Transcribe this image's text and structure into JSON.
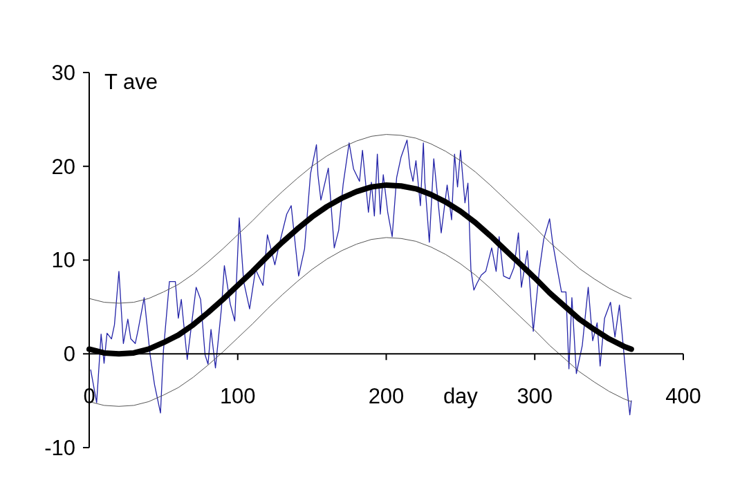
{
  "chart_data": {
    "type": "line",
    "xlabel": "day",
    "ylabel": "T ave",
    "xlim": [
      0,
      400
    ],
    "ylim": [
      -10,
      30
    ],
    "xticks": [
      0,
      100,
      200,
      300,
      400
    ],
    "yticks": [
      -10,
      0,
      10,
      20,
      30
    ],
    "series": [
      {
        "color": "#2323a8",
        "x": [
          1,
          5,
          8,
          10,
          12,
          15,
          17,
          20,
          23,
          26,
          28,
          31,
          33,
          37,
          41,
          44,
          48,
          50,
          54,
          58,
          60,
          62,
          66,
          72,
          75,
          78,
          80,
          82,
          85,
          89,
          91,
          95,
          98,
          101,
          104,
          108,
          112,
          117,
          120,
          125,
          128,
          133,
          136,
          141,
          145,
          149,
          153,
          154,
          156,
          161,
          165,
          168,
          171,
          175,
          178,
          182,
          184,
          188,
          190,
          192,
          194,
          196,
          198,
          201,
          204,
          207,
          210,
          214,
          216,
          218,
          220,
          223,
          225,
          226,
          229,
          232,
          237,
          241,
          244,
          246,
          248,
          250,
          253,
          255,
          257,
          259,
          261,
          264,
          267,
          271,
          274,
          276,
          279,
          283,
          286,
          289,
          291,
          295,
          299,
          303,
          306,
          310,
          312,
          315,
          318,
          321,
          323,
          325,
          328,
          332,
          336,
          339,
          342,
          344,
          347,
          351,
          354,
          357,
          360,
          362,
          364,
          365
        ],
        "values": [
          -1.7,
          -5.2,
          2.1,
          -1,
          2.2,
          1.6,
          3.1,
          8.8,
          1.1,
          3.7,
          1.6,
          1.1,
          2.6,
          6,
          -0.1,
          -3.3,
          -6.3,
          0.4,
          7.7,
          7.7,
          3.8,
          5.8,
          -0.6,
          7.1,
          5.8,
          -0.1,
          -1.1,
          2.6,
          -1.5,
          4.8,
          9.4,
          5.3,
          3.5,
          14.5,
          7.7,
          4.8,
          9,
          7.3,
          12.7,
          9.5,
          11.7,
          14.9,
          15.8,
          8.3,
          11.2,
          19.2,
          22.3,
          19.1,
          16.4,
          19.8,
          11.3,
          13.2,
          18.1,
          22.5,
          19.7,
          18.4,
          21.7,
          15.1,
          18.3,
          14.7,
          21.3,
          14.9,
          19.1,
          15.1,
          12.5,
          18.8,
          21,
          22.8,
          19.8,
          18.4,
          20.6,
          15.8,
          22.5,
          18.3,
          11.9,
          20.8,
          12.9,
          18,
          14.3,
          21.3,
          17.8,
          21.7,
          16.1,
          18.2,
          9,
          6.8,
          7.5,
          8.4,
          8.8,
          11.3,
          8.8,
          12.5,
          8.3,
          8,
          9.2,
          12.9,
          7.1,
          11,
          2.4,
          8.8,
          12.2,
          14.4,
          11.9,
          9.2,
          6.6,
          6.6,
          -1.6,
          6,
          -2.1,
          0.9,
          7.1,
          1.4,
          3.3,
          -1.3,
          3.8,
          5.5,
          1.8,
          5.2,
          0.1,
          -3.5,
          -6.5,
          -5
        ]
      },
      {
        "color": "#000000",
        "x": [
          0,
          10,
          20,
          30,
          40,
          50,
          60,
          70,
          80,
          90,
          100,
          110,
          120,
          130,
          140,
          150,
          160,
          170,
          180,
          190,
          200,
          210,
          220,
          230,
          240,
          250,
          260,
          270,
          280,
          290,
          300,
          310,
          320,
          330,
          340,
          350,
          360,
          365
        ],
        "values": [
          0.5,
          0.1,
          0,
          0.1,
          0.5,
          1.2,
          2,
          3.1,
          4.4,
          5.8,
          7.3,
          8.8,
          10.4,
          11.9,
          13.3,
          14.6,
          15.7,
          16.6,
          17.3,
          17.8,
          18,
          17.9,
          17.6,
          17,
          16.2,
          15.2,
          14,
          12.6,
          11.1,
          9.6,
          8.1,
          6.5,
          5.1,
          3.7,
          2.6,
          1.6,
          0.8,
          0.5
        ]
      },
      {
        "color": "#555555",
        "x": [
          0,
          10,
          20,
          30,
          40,
          50,
          60,
          70,
          80,
          90,
          100,
          110,
          120,
          130,
          140,
          150,
          160,
          170,
          180,
          190,
          200,
          210,
          220,
          230,
          240,
          250,
          260,
          270,
          280,
          290,
          300,
          310,
          320,
          330,
          340,
          350,
          360,
          365
        ],
        "values": [
          5.9,
          5.5,
          5.4,
          5.5,
          5.9,
          6.6,
          7.4,
          8.5,
          9.8,
          11.2,
          12.7,
          14.2,
          15.8,
          17.3,
          18.7,
          20,
          21.1,
          22,
          22.7,
          23.2,
          23.4,
          23.3,
          23,
          22.4,
          21.6,
          20.6,
          19.4,
          18,
          16.5,
          15,
          13.5,
          11.9,
          10.5,
          9.1,
          8,
          7,
          6.2,
          5.9
        ]
      },
      {
        "color": "#555555",
        "x": [
          0,
          10,
          20,
          30,
          40,
          50,
          60,
          70,
          80,
          90,
          100,
          110,
          120,
          130,
          140,
          150,
          160,
          170,
          180,
          190,
          200,
          210,
          220,
          230,
          240,
          250,
          260,
          270,
          280,
          290,
          300,
          310,
          320,
          330,
          340,
          350,
          360,
          365
        ],
        "values": [
          -5.1,
          -5.5,
          -5.6,
          -5.5,
          -5.1,
          -4.4,
          -3.6,
          -2.5,
          -1.2,
          0.2,
          1.7,
          3.2,
          4.8,
          6.3,
          7.7,
          9,
          10.1,
          11,
          11.7,
          12.2,
          12.4,
          12.3,
          12,
          11.4,
          10.6,
          9.6,
          8.4,
          7,
          5.5,
          4,
          2.5,
          0.9,
          -0.5,
          -1.9,
          -3,
          -4,
          -4.8,
          -5.1
        ]
      }
    ]
  }
}
